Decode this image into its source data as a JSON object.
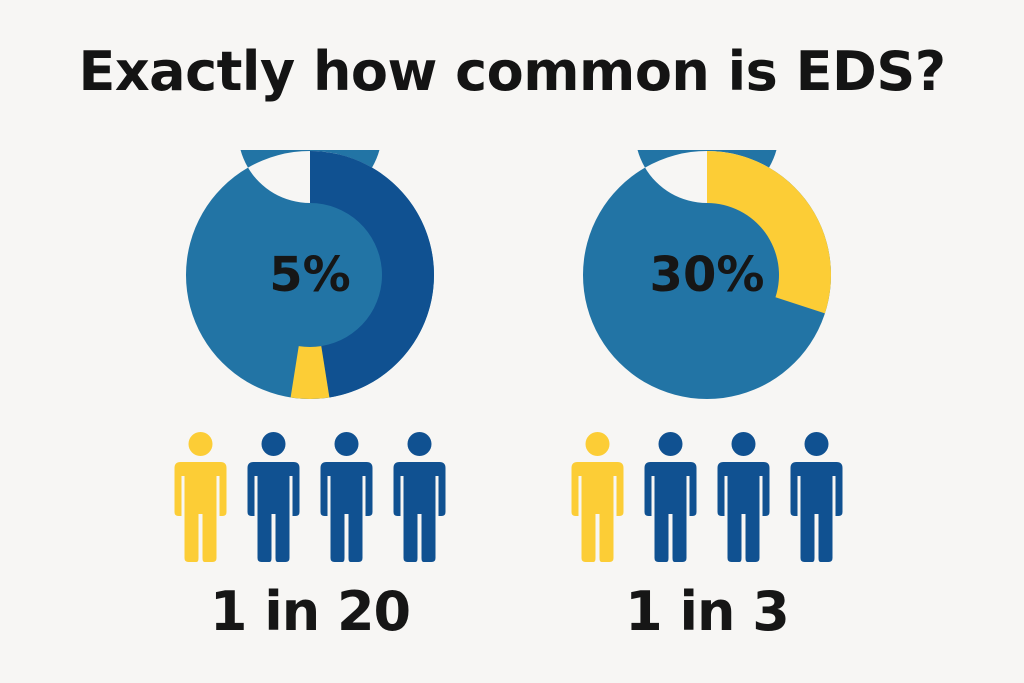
{
  "title": "Exactly how common is EDS?",
  "colors": {
    "background": "#f7f6f4",
    "blue_light": "#2274a5",
    "blue_dark": "#105191",
    "yellow": "#fccd36"
  },
  "chart_data": [
    {
      "type": "pie",
      "variant": "donut",
      "center_label": "5%",
      "value_percent": 5,
      "highlight_color": "#fccd36",
      "people_icons": {
        "total": 4,
        "highlighted": 1,
        "icon": "person-icon"
      },
      "ratio_label": "1 in 20"
    },
    {
      "type": "pie",
      "variant": "donut",
      "center_label": "30%",
      "value_percent": 30,
      "highlight_color": "#fccd36",
      "people_icons": {
        "total": 4,
        "highlighted": 1,
        "icon": "person-icon"
      },
      "ratio_label": "1 in 3"
    }
  ]
}
